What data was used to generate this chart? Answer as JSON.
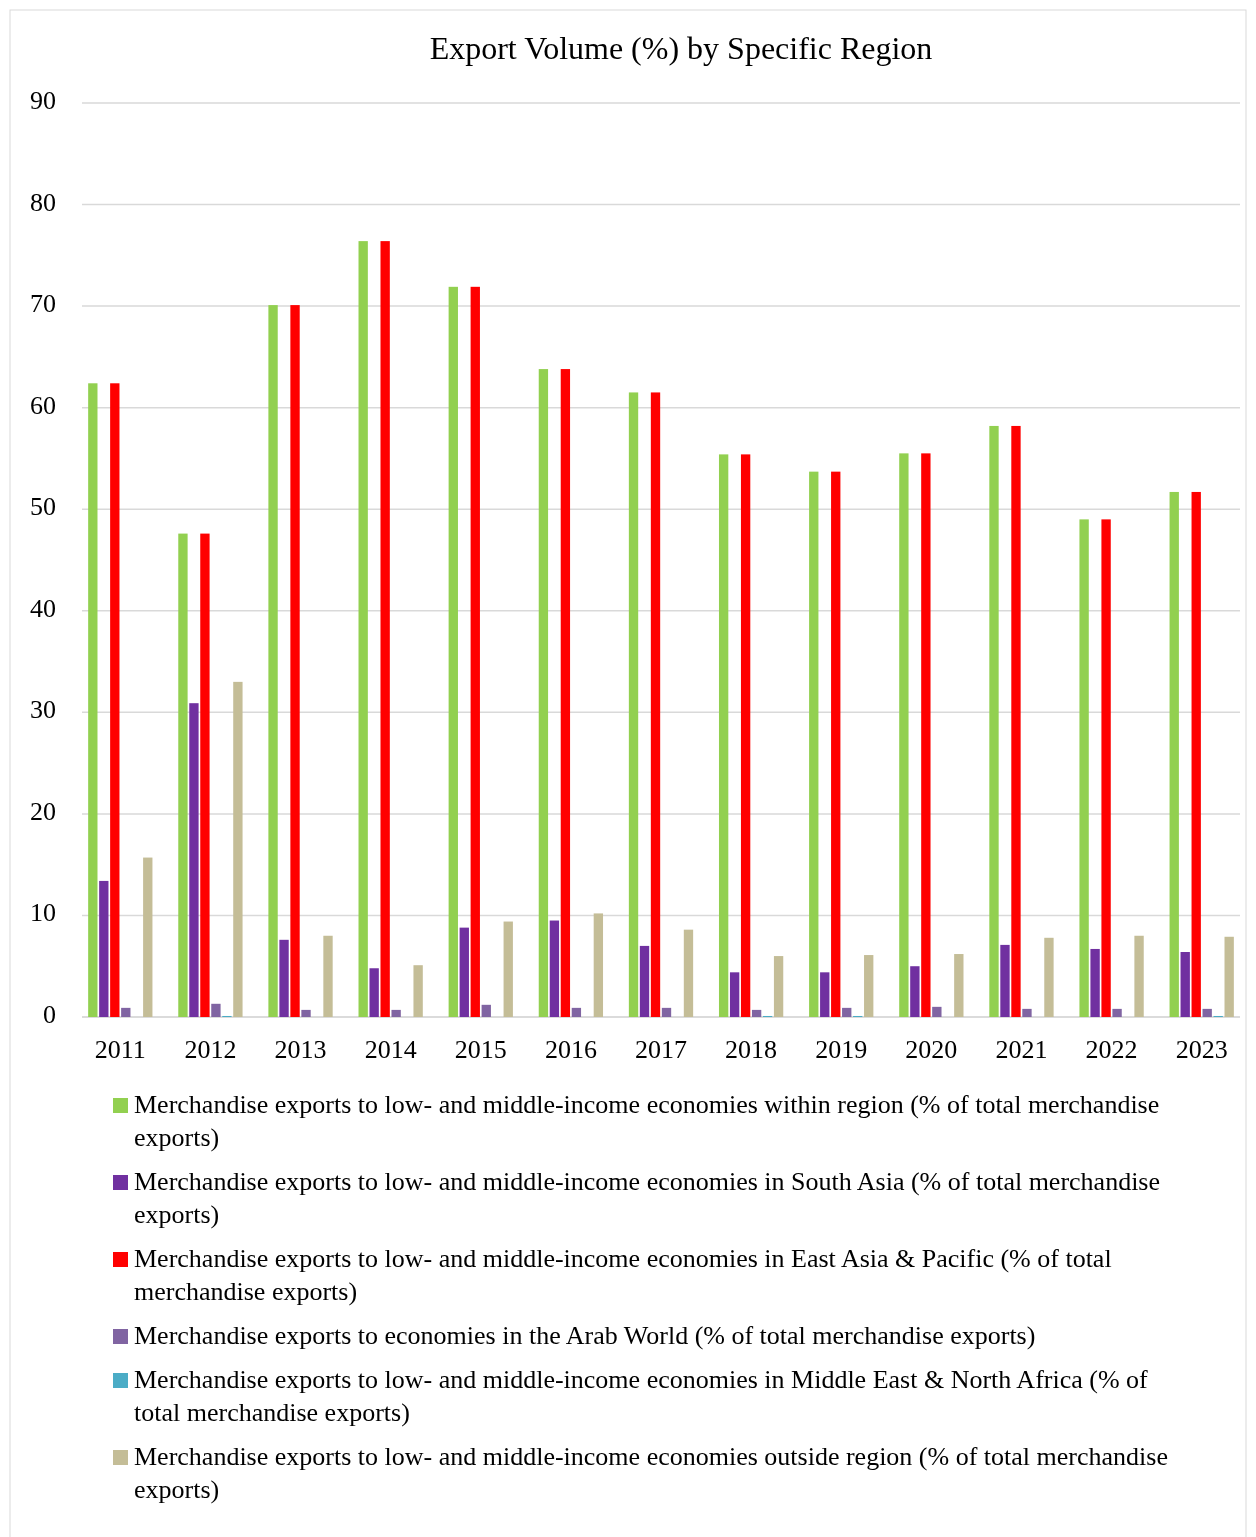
{
  "chart_data": {
    "type": "bar",
    "title": "Export Volume (%) by Specific Region",
    "categories": [
      "2011",
      "2012",
      "2013",
      "2014",
      "2015",
      "2016",
      "2017",
      "2018",
      "2019",
      "2020",
      "2021",
      "2022",
      "2023"
    ],
    "series": [
      {
        "name": "Merchandise exports to low- and middle-income economies within region (% of total merchandise exports)",
        "color": "#92d050",
        "values": [
          62.4,
          47.6,
          70.1,
          76.4,
          71.9,
          63.8,
          61.5,
          55.4,
          53.7,
          55.5,
          58.2,
          49.0,
          51.7
        ]
      },
      {
        "name": "Merchandise exports to low- and middle-income economies in South Asia (% of total merchandise exports)",
        "color": "#7030a0",
        "values": [
          13.4,
          30.9,
          7.6,
          4.8,
          8.8,
          9.5,
          7.0,
          4.4,
          4.4,
          5.0,
          7.1,
          6.7,
          6.4
        ]
      },
      {
        "name": "Merchandise exports to low- and middle-income economies in East Asia & Pacific (% of total merchandise exports)",
        "color": "#ff0000",
        "values": [
          62.4,
          47.6,
          70.1,
          76.4,
          71.9,
          63.8,
          61.5,
          55.4,
          53.7,
          55.5,
          58.2,
          49.0,
          51.7
        ]
      },
      {
        "name": "Merchandise exports to economies in the Arab World (% of total merchandise exports)",
        "color": "#8064a2",
        "values": [
          0.9,
          1.3,
          0.7,
          0.7,
          1.2,
          0.9,
          0.9,
          0.7,
          0.9,
          1.0,
          0.8,
          0.8,
          0.8
        ]
      },
      {
        "name": "Merchandise exports to low- and middle-income economies in Middle East & North Africa (% of total merchandise exports)",
        "color": "#4bacc6",
        "values": [
          0,
          0.1,
          0,
          0,
          0,
          0,
          0,
          0.1,
          0.1,
          0,
          0,
          0,
          0.1
        ]
      },
      {
        "name": "Merchandise exports to low- and middle-income economies outside region (% of total merchandise exports)",
        "color": "#c4bd97",
        "values": [
          15.7,
          33.0,
          8.0,
          5.1,
          9.4,
          10.2,
          8.6,
          6.0,
          6.1,
          6.2,
          7.8,
          8.0,
          7.9
        ]
      }
    ],
    "ylim": [
      0,
      90
    ],
    "yticks": [
      0,
      10,
      20,
      30,
      40,
      50,
      60,
      70,
      80,
      90
    ],
    "grid": "y",
    "legend": "bottom"
  }
}
